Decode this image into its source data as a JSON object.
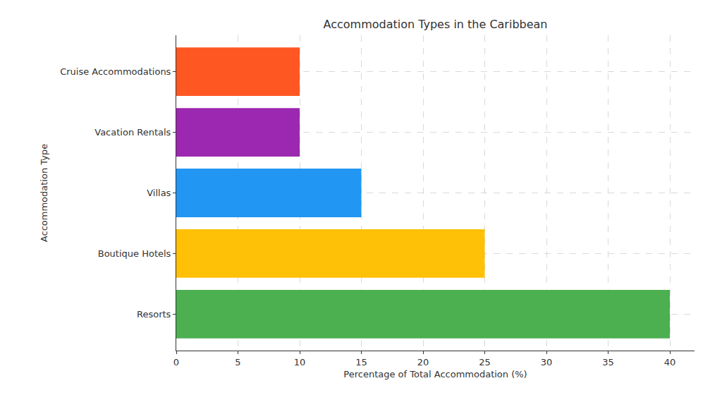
{
  "chart_data": {
    "type": "bar",
    "orientation": "horizontal",
    "title": "Accommodation Types in the Caribbean",
    "xlabel": "Percentage of Total Accommodation (%)",
    "ylabel": "Accommodation Type",
    "categories": [
      "Resorts",
      "Boutique Hotels",
      "Villas",
      "Vacation Rentals",
      "Cruise Accommodations"
    ],
    "values": [
      40,
      25,
      15,
      10,
      10
    ],
    "colors": [
      "#4caf50",
      "#ffc107",
      "#2196f3",
      "#9c27b0",
      "#ff5722"
    ],
    "xlim": [
      0,
      42
    ],
    "xticks": [
      0,
      5,
      10,
      15,
      20,
      25,
      30,
      35,
      40
    ],
    "grid": true
  }
}
